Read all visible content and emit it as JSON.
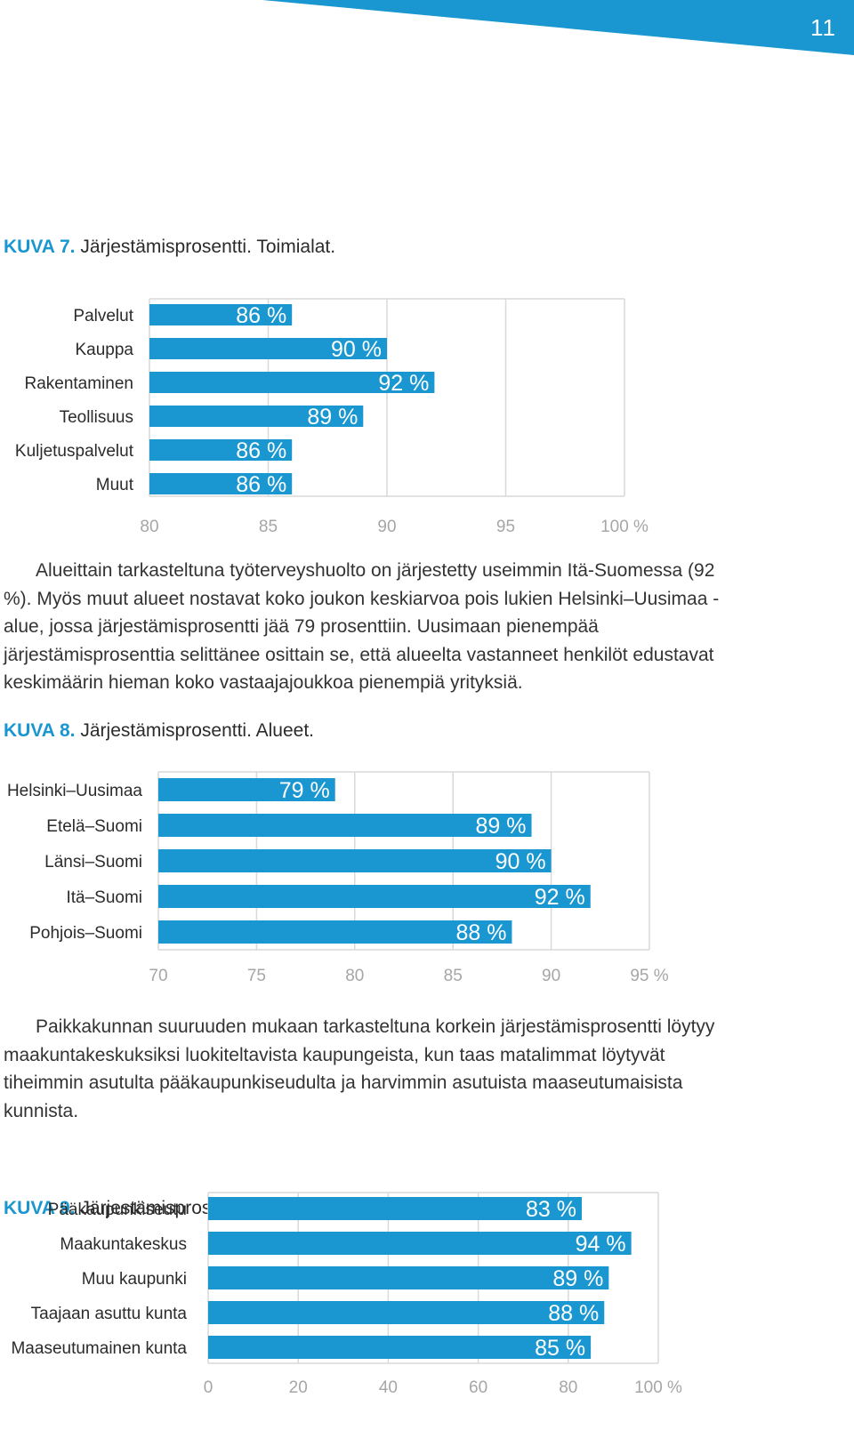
{
  "page": {
    "number": "11"
  },
  "figures": [
    {
      "id": "kuva7",
      "label": "KUVA 7.",
      "title": "Järjestämisprosentti. Toimialat."
    },
    {
      "id": "kuva8",
      "label": "KUVA 8.",
      "title": "Järjestämisprosentti. Alueet."
    },
    {
      "id": "kuva9",
      "label": "KUVA 9.",
      "title": "Järjestämisprosentti. Paikkakunnan koko."
    }
  ],
  "paragraphs": [
    "Alueittain tarkasteltuna työterveyshuolto on järjestetty useimmin Itä-Suomessa (92 %). Myös muut alueet nostavat koko joukon keskiarvoa pois lukien Helsinki–Uusimaa -alue, jossa järjestämisprosentti jää 79 prosenttiin. Uusimaan pienempää järjestämisprosenttia selittänee osittain se, että alueelta vastanneet henkilöt edustavat keskimäärin hieman koko vastaajajoukkoa pienempiä yrityksiä.",
    "Paikkakunnan suuruuden mukaan tarkasteltuna korkein järjestämisprosentti löytyy maakuntakeskuksiksi luokiteltavista kaupungeista, kun taas matalimmat löytyvät tiheimmin asutulta pääkaupunkiseudulta ja harvimmin asutuista maaseutumaisista kunnista."
  ],
  "colors": {
    "bar": "#1a97d0",
    "accent": "#1a97d0",
    "grid": "#d9d9d9",
    "axis_text": "#a6a6a6"
  },
  "chart_data": [
    {
      "type": "bar",
      "orientation": "horizontal",
      "title": "Järjestämisprosentti. Toimialat.",
      "categories": [
        "Palvelut",
        "Kauppa",
        "Rakentaminen",
        "Teollisuus",
        "Kuljetuspalvelut",
        "Muut"
      ],
      "values": [
        86,
        90,
        92,
        89,
        86,
        86
      ],
      "value_labels": [
        "86 %",
        "90 %",
        "92 %",
        "89 %",
        "86 %",
        "86 %"
      ],
      "xlim": [
        80,
        100
      ],
      "ticks": [
        80,
        85,
        90,
        95,
        100
      ],
      "tick_labels": [
        "80",
        "85",
        "90",
        "95",
        "100 %"
      ],
      "grid": true
    },
    {
      "type": "bar",
      "orientation": "horizontal",
      "title": "Järjestämisprosentti. Alueet.",
      "categories": [
        "Helsinki–Uusimaa",
        "Etelä–Suomi",
        "Länsi–Suomi",
        "Itä–Suomi",
        "Pohjois–Suomi"
      ],
      "values": [
        79,
        89,
        90,
        92,
        88
      ],
      "value_labels": [
        "79 %",
        "89 %",
        "90 %",
        "92 %",
        "88 %"
      ],
      "xlim": [
        70,
        95
      ],
      "ticks": [
        70,
        75,
        80,
        85,
        90,
        95
      ],
      "tick_labels": [
        "70",
        "75",
        "80",
        "85",
        "90",
        "95 %"
      ],
      "grid": true
    },
    {
      "type": "bar",
      "orientation": "horizontal",
      "title": "Järjestämisprosentti. Paikkakunnan koko.",
      "categories": [
        "Pääkaupunkiseutu",
        "Maakuntakeskus",
        "Muu kaupunki",
        "Taajaan asuttu kunta",
        "Maaseutumainen kunta"
      ],
      "values": [
        83,
        94,
        89,
        88,
        85
      ],
      "value_labels": [
        "83 %",
        "94 %",
        "89 %",
        "88 %",
        "85 %"
      ],
      "xlim": [
        0,
        100
      ],
      "ticks": [
        0,
        20,
        40,
        60,
        80,
        100
      ],
      "tick_labels": [
        "0",
        "20",
        "40",
        "60",
        "80",
        "100 %"
      ],
      "grid": true
    }
  ]
}
